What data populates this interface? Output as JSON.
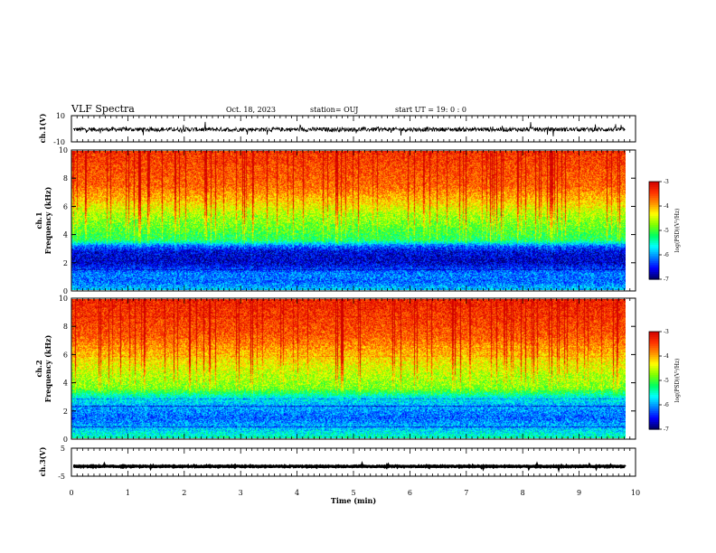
{
  "header": {
    "title": "VLF Spectra",
    "date": "Oct. 18, 2023",
    "station": "station= OUJ",
    "start": "start  UT =   19: 0  : 0"
  },
  "colorscale": {
    "label": "log(PSD)(V²/Hz)",
    "ticks": [
      "-3",
      "-4",
      "-5",
      "-6",
      "-7"
    ],
    "stops": [
      "#d00000",
      "#ff3000",
      "#ff9000",
      "#ffff00",
      "#80ff00",
      "#00ff60",
      "#00ffff",
      "#0080ff",
      "#0000ff",
      "#000060"
    ]
  },
  "chart_data": [
    {
      "type": "line",
      "panel": "ch1-waveform",
      "ylabel": "ch.1(V)",
      "ylim": [
        -10,
        10
      ],
      "yticks": [
        "10",
        "-10"
      ],
      "description_values": {
        "mean": -0.5,
        "noise_amplitude": 2
      }
    },
    {
      "type": "heatmap",
      "panel": "ch1-spectrogram",
      "ylabel": "ch.1\nFrequency (kHz)",
      "ylim": [
        0,
        10
      ],
      "yticks": [
        "0",
        "2",
        "4",
        "6",
        "8",
        "10"
      ],
      "zlim": [
        -7,
        -3
      ],
      "band_profile": [
        {
          "f": 0.0,
          "v": -5.8
        },
        {
          "f": 0.6,
          "v": -6.2
        },
        {
          "f": 1.2,
          "v": -6.1
        },
        {
          "f": 2.0,
          "v": -6.7
        },
        {
          "f": 2.8,
          "v": -6.6
        },
        {
          "f": 3.2,
          "v": -6.2
        },
        {
          "f": 3.6,
          "v": -5.2
        },
        {
          "f": 4.5,
          "v": -4.9
        },
        {
          "f": 5.5,
          "v": -4.6
        },
        {
          "f": 6.5,
          "v": -4.1
        },
        {
          "f": 7.5,
          "v": -3.7
        },
        {
          "f": 10.0,
          "v": -3.4
        }
      ]
    },
    {
      "type": "heatmap",
      "panel": "ch2-spectrogram",
      "ylabel": "ch.2\nFrequency (kHz)",
      "ylim": [
        0,
        10
      ],
      "yticks": [
        "0",
        "2",
        "4",
        "6",
        "8",
        "10"
      ],
      "zlim": [
        -7,
        -3
      ],
      "band_profile": [
        {
          "f": 0.0,
          "v": -5.4
        },
        {
          "f": 0.8,
          "v": -5.9
        },
        {
          "f": 1.5,
          "v": -6.2
        },
        {
          "f": 2.2,
          "v": -6.0
        },
        {
          "f": 3.0,
          "v": -5.6
        },
        {
          "f": 3.6,
          "v": -4.8
        },
        {
          "f": 4.5,
          "v": -4.6
        },
        {
          "f": 5.5,
          "v": -4.3
        },
        {
          "f": 6.5,
          "v": -3.9
        },
        {
          "f": 7.5,
          "v": -3.6
        },
        {
          "f": 10.0,
          "v": -3.3
        }
      ]
    },
    {
      "type": "line",
      "panel": "ch3-waveform",
      "ylabel": "ch.3(V)",
      "ylim": [
        -5,
        5
      ],
      "yticks": [
        "5",
        "-5"
      ],
      "description_values": {
        "mean": -1.5,
        "noise_amplitude": 0.3
      }
    }
  ],
  "xaxis": {
    "xlabel": "Time (min)",
    "xlim": [
      0,
      10
    ],
    "ticks": [
      "0",
      "1",
      "2",
      "3",
      "4",
      "5",
      "6",
      "7",
      "8",
      "9",
      "10"
    ],
    "data_end": 9.82
  }
}
